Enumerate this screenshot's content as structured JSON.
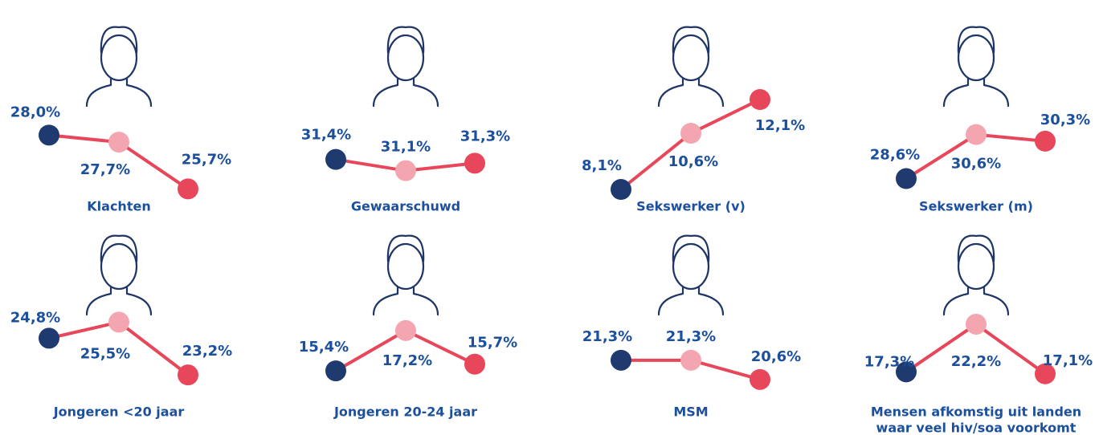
{
  "chart_data": [
    {
      "type": "line",
      "title": "Klachten",
      "values": [
        28.0,
        27.7,
        25.7
      ],
      "value_labels": [
        "28,0%",
        "27,7%",
        "25,7%"
      ],
      "ylim": [
        25.2,
        30.0
      ],
      "point_colors": [
        "#1f3a6e",
        "#f4a6b0",
        "#e8465a"
      ],
      "line_color": "#e8465a"
    },
    {
      "type": "line",
      "title": "Gewaarschuwd",
      "values": [
        31.4,
        31.1,
        31.3
      ],
      "value_labels": [
        "31,4%",
        "31,1%",
        "31,3%"
      ],
      "ylim": [
        30.3,
        33.3
      ],
      "point_colors": [
        "#1f3a6e",
        "#f4a6b0",
        "#e8465a"
      ],
      "line_color": "#e8465a"
    },
    {
      "type": "line",
      "title": "Sekswerker (v)",
      "values": [
        8.1,
        10.6,
        12.1
      ],
      "value_labels": [
        "8,1%",
        "10,6%",
        "12,1%"
      ],
      "ylim": [
        7.6,
        12.6
      ],
      "point_colors": [
        "#1f3a6e",
        "#f4a6b0",
        "#e8465a"
      ],
      "line_color": "#e8465a"
    },
    {
      "type": "line",
      "title": "Sekswerker (m)",
      "values": [
        28.6,
        30.6,
        30.3
      ],
      "value_labels": [
        "28,6%",
        "30,6%",
        "30,3%"
      ],
      "ylim": [
        27.6,
        32.7
      ],
      "point_colors": [
        "#1f3a6e",
        "#f4a6b0",
        "#e8465a"
      ],
      "line_color": "#e8465a"
    },
    {
      "type": "line",
      "title": "Jongeren <20 jaar",
      "values": [
        24.8,
        25.5,
        23.2
      ],
      "value_labels": [
        "24,8%",
        "25,5%",
        "23,2%"
      ],
      "ylim": [
        22.4,
        26.6
      ],
      "point_colors": [
        "#1f3a6e",
        "#f4a6b0",
        "#e8465a"
      ],
      "line_color": "#e8465a"
    },
    {
      "type": "line",
      "title": "Jongeren 20-24 jaar",
      "values": [
        15.4,
        17.2,
        15.7
      ],
      "value_labels": [
        "15,4%",
        "17,2%",
        "15,7%"
      ],
      "ylim": [
        14.4,
        18.7
      ],
      "point_colors": [
        "#1f3a6e",
        "#f4a6b0",
        "#e8465a"
      ],
      "line_color": "#e8465a"
    },
    {
      "type": "line",
      "title": "MSM",
      "values": [
        21.3,
        21.3,
        20.6
      ],
      "value_labels": [
        "21,3%",
        "21,3%",
        "20,6%"
      ],
      "ylim": [
        20.1,
        23.6
      ],
      "point_colors": [
        "#1f3a6e",
        "#f4a6b0",
        "#e8465a"
      ],
      "line_color": "#e8465a"
    },
    {
      "type": "line",
      "title": [
        "Mensen afkomstig uit landen",
        "waar veel hiv/soa voorkomt"
      ],
      "values": [
        17.3,
        22.2,
        17.1
      ],
      "value_labels": [
        "17,3%",
        "22,2%",
        "17,1%"
      ],
      "ylim": [
        15.1,
        25.0
      ],
      "point_colors": [
        "#1f3a6e",
        "#f4a6b0",
        "#e8465a"
      ],
      "line_color": "#e8465a"
    }
  ]
}
